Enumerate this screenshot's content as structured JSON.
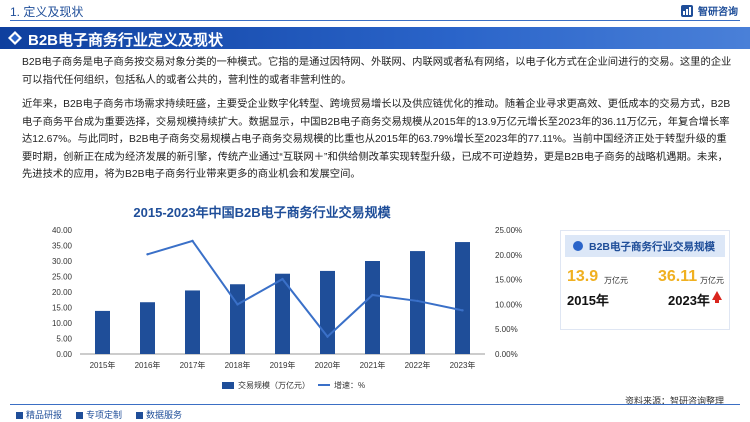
{
  "header": {
    "section": "1. 定义及现状",
    "brand": "智研咨询"
  },
  "title": "B2B电子商务行业定义及现状",
  "paragraphs": [
    "B2B电子商务是电子商务按交易对象分类的一种模式。它指的是通过因特网、外联网、内联网或者私有网络，以电子化方式在企业间进行的交易。这里的企业可以指代任何组织，包括私人的或者公共的，营利性的或者非营利性的。",
    "近年来，B2B电子商务市场需求持续旺盛，主要受企业数字化转型、跨境贸易增长以及供应链优化的推动。随着企业寻求更高效、更低成本的交易方式，B2B电子商务平台成为重要选择，交易规模持续扩大。数据显示，中国B2B电子商务交易规模从2015年的13.9万亿元增长至2023年的36.11万亿元，年复合增长率达12.67%。与此同时，B2B电子商务交易规模占电子商务交易规模的比重也从2015年的63.79%增长至2023年的77.11%。当前中国经济正处于转型升级的重要时期，创新正在成为经济发展的新引擎，传统产业通过“互联网＋”和供给侧改革实现转型升级，已成不可逆趋势，更是B2B电子商务的战略机遇期。未来，先进技术的应用，将为B2B电子商务行业带来更多的商业机会和发展空间。"
  ],
  "card": {
    "title": "B2B电子商务行业交易规模",
    "start_value": "13.9",
    "start_unit": "万亿元",
    "start_year": "2015年",
    "end_value": "36.11",
    "end_unit": "万亿元",
    "end_year": "2023年"
  },
  "footer": {
    "items": [
      "精品研报",
      "专项定制",
      "数据服务"
    ],
    "source": "资料来源：智研咨询整理"
  },
  "colors": {
    "primary": "#1f4e99",
    "bar": "#1f4e99",
    "line": "#3a70c8",
    "accent": "#f0b020",
    "up": "#d9251d"
  },
  "chart_data": {
    "type": "bar",
    "title": "2015-2023年中国B2B电子商务行业交易规模",
    "categories": [
      "2015年",
      "2016年",
      "2017年",
      "2018年",
      "2019年",
      "2020年",
      "2021年",
      "2022年",
      "2023年"
    ],
    "series": [
      {
        "name": "交易规模（万亿元）",
        "type": "bar",
        "axis": "left",
        "values": [
          13.9,
          16.7,
          20.5,
          22.5,
          25.9,
          26.8,
          30.0,
          33.2,
          36.11
        ]
      },
      {
        "name": "增速：%",
        "type": "line",
        "axis": "right",
        "values": [
          null,
          20.1,
          22.8,
          10.0,
          15.1,
          3.5,
          11.9,
          10.7,
          8.8
        ]
      }
    ],
    "y_left": {
      "ylim": [
        0,
        40
      ],
      "ticks": [
        "0.00",
        "5.00",
        "10.00",
        "15.00",
        "20.00",
        "25.00",
        "30.00",
        "35.00",
        "40.00"
      ]
    },
    "y_right": {
      "ylim": [
        0,
        25
      ],
      "ticks": [
        "0.00%",
        "5.00%",
        "10.00%",
        "15.00%",
        "20.00%",
        "25.00%"
      ]
    },
    "legend": "bottom",
    "grid": false
  }
}
